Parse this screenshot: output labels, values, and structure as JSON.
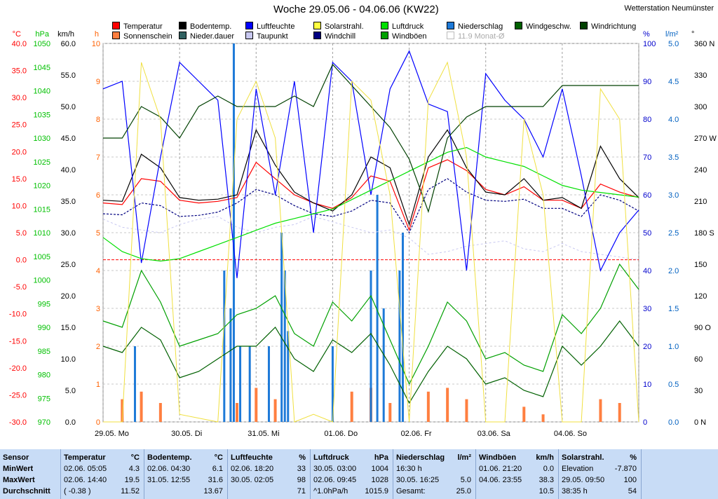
{
  "title": "Woche 29.05.06 - 04.06.06 (KW22)",
  "station": "Wetterstation Neumünster",
  "legend": [
    {
      "label": "Temperatur",
      "color": "#ff0000"
    },
    {
      "label": "Bodentemp.",
      "color": "#000000"
    },
    {
      "label": "Luftfeuchte",
      "color": "#0000ff"
    },
    {
      "label": "Solarstrahl.",
      "color": "#ffff40"
    },
    {
      "label": "Luftdruck",
      "color": "#00e000"
    },
    {
      "label": "Niederschlag",
      "color": "#1e7ad8"
    },
    {
      "label": "Windgeschw.",
      "color": "#006000"
    },
    {
      "label": "Windrichtung",
      "color": "#004000"
    },
    {
      "label": "Sonnenschein",
      "color": "#ff7f40"
    },
    {
      "label": "Nieder.dauer",
      "color": "#306060"
    },
    {
      "label": "Taupunkt",
      "color": "#c8c8f0"
    },
    {
      "label": "Windchill",
      "color": "#000080"
    },
    {
      "label": "Windböen",
      "color": "#00a000"
    },
    {
      "label": "11.9 Monat-Ø",
      "color": "#ffffff",
      "muted": true
    }
  ],
  "axes": {
    "temp": {
      "unit": "°C",
      "ticks": [
        "40.0",
        "35.0",
        "30.0",
        "25.0",
        "20.0",
        "15.0",
        "10.0",
        "5.0",
        "0.0",
        "-5.0",
        "-10.0",
        "-15.0",
        "-20.0",
        "-25.0",
        "-30.0"
      ],
      "color": "#ff0000"
    },
    "pressure": {
      "unit": "hPa",
      "ticks": [
        "1050",
        "1045",
        "1040",
        "1035",
        "1030",
        "1025",
        "1020",
        "1015",
        "1010",
        "1005",
        "1000",
        "995",
        "990",
        "985",
        "980",
        "975",
        "970"
      ],
      "color": "#00c000"
    },
    "wind": {
      "unit": "km/h",
      "ticks": [
        "60.0",
        "55.0",
        "50.0",
        "45.0",
        "40.0",
        "35.0",
        "30.0",
        "25.0",
        "20.0",
        "15.0",
        "10.0",
        "5.0",
        "0.0"
      ],
      "color": "#000000"
    },
    "hours": {
      "unit": "h",
      "ticks": [
        "10",
        "9",
        "8",
        "7",
        "6",
        "5",
        "4",
        "3",
        "2",
        "1",
        "0"
      ],
      "color": "#ff6000"
    },
    "humidity": {
      "unit": "%",
      "ticks": [
        "100",
        "90",
        "80",
        "70",
        "60",
        "50",
        "40",
        "30",
        "20",
        "10",
        "0"
      ],
      "color": "#0000cc"
    },
    "rain": {
      "unit": "l/m²",
      "ticks": [
        "5.0",
        "4.5",
        "4.0",
        "3.5",
        "3.0",
        "2.5",
        "2.0",
        "1.5",
        "1.0",
        "0.5",
        "0.0"
      ],
      "color": "#0060c0"
    },
    "direction": {
      "unit": "°",
      "ticks": [
        "360 N",
        "330",
        "300",
        "270 W",
        "240",
        "210",
        "180 S",
        "150",
        "120",
        "90 O",
        "60",
        "30",
        "0 N"
      ],
      "color": "#000000"
    }
  },
  "day_labels": [
    "29.05.  Mo",
    "30.05.  Di",
    "31.05.  Mi",
    "01.06.  Do",
    "02.06.  Fr",
    "03.06.  Sa",
    "04.06.  So"
  ],
  "chart_data": {
    "type": "line",
    "title": "Woche 29.05.06 - 04.06.06 (KW22)",
    "x": [
      0,
      6,
      12,
      18,
      24,
      30,
      36,
      42,
      48,
      54,
      60,
      66,
      72,
      78,
      84,
      90,
      96,
      102,
      108,
      114,
      120,
      126,
      132,
      138,
      144,
      150,
      156,
      162,
      168
    ],
    "x_unit": "hours since 29.05. 00:00",
    "series": [
      {
        "name": "Temperatur",
        "unit": "°C",
        "values": [
          10.5,
          10.2,
          15,
          14.5,
          11,
          10.5,
          10.8,
          11.5,
          18,
          15,
          12,
          10.5,
          9.5,
          11.5,
          15.5,
          14.5,
          5.5,
          17,
          18.5,
          16.5,
          13,
          12,
          13.5,
          11,
          11,
          9.5,
          14,
          12.5,
          11.5
        ]
      },
      {
        "name": "Bodentemp.",
        "unit": "°C",
        "values": [
          11,
          10.8,
          19.5,
          17,
          11.5,
          11,
          11.2,
          12,
          24,
          17.5,
          12.5,
          10.5,
          9,
          12,
          19,
          17,
          6.5,
          19,
          24,
          17,
          12.5,
          12,
          15,
          11,
          11.5,
          9.5,
          21,
          15,
          11.5
        ]
      },
      {
        "name": "Windchill",
        "unit": "°C",
        "values": [
          8.5,
          8.3,
          10.5,
          10,
          8,
          8.2,
          8.8,
          10.5,
          13,
          12,
          10,
          8.5,
          8,
          9,
          11,
          10.5,
          5,
          13,
          15,
          12.5,
          11,
          10.8,
          11.2,
          9.5,
          9.5,
          8,
          12,
          11,
          9
        ]
      },
      {
        "name": "Taupunkt",
        "unit": "°C",
        "values": [
          7.5,
          6,
          5.5,
          5,
          6.5,
          7.5,
          8,
          6,
          5,
          6,
          6.5,
          8,
          7,
          6,
          5,
          5.5,
          4,
          1,
          1.5,
          2.5,
          3,
          3.5,
          2,
          1.5,
          3,
          1.5,
          1,
          0.5,
          0
        ]
      },
      {
        "name": "Luftfeuchte",
        "unit": "%",
        "values": [
          88,
          90,
          42,
          70,
          95,
          90,
          85,
          38,
          88,
          60,
          90,
          50,
          95,
          90,
          60,
          88,
          98,
          84,
          82,
          40,
          92,
          85,
          80,
          70,
          88,
          65,
          40,
          50,
          56
        ]
      },
      {
        "name": "Luftdruck",
        "unit": "hPa",
        "values": [
          1009,
          1006,
          1004.5,
          1004,
          1004.5,
          1006,
          1007.5,
          1009,
          1010.5,
          1012,
          1013,
          1014,
          1015,
          1017,
          1019,
          1021,
          1023,
          1025,
          1027,
          1028,
          1026,
          1025,
          1024,
          1022,
          1020,
          1019,
          1018.5,
          1018,
          1017.5
        ]
      },
      {
        "name": "Windgeschw.",
        "unit": "km/h",
        "values": [
          12,
          11,
          15,
          13,
          7,
          8,
          10,
          12,
          12,
          15,
          10,
          8,
          13,
          11,
          14,
          9,
          3,
          8,
          12,
          10,
          6,
          7,
          5,
          4,
          12,
          9,
          12,
          16,
          12
        ]
      },
      {
        "name": "Windböen",
        "unit": "km/h",
        "values": [
          16,
          15,
          24,
          19,
          12,
          13,
          14,
          17,
          18,
          20,
          14,
          12,
          19,
          16,
          20,
          13,
          6,
          12,
          19,
          16,
          10,
          11,
          9,
          8,
          17,
          14,
          18,
          25,
          21
        ]
      },
      {
        "name": "Windrichtung",
        "unit": "°",
        "values": [
          270,
          270,
          300,
          290,
          270,
          300,
          310,
          300,
          300,
          300,
          310,
          300,
          340,
          320,
          300,
          280,
          250,
          200,
          270,
          290,
          300,
          300,
          300,
          300,
          320,
          320,
          320,
          320,
          320
        ]
      },
      {
        "name": "Solarstrahl.",
        "unit": "%",
        "values": [
          0,
          0,
          95,
          80,
          2,
          1,
          0,
          80,
          90,
          75,
          0,
          2,
          0,
          90,
          85,
          60,
          0,
          85,
          95,
          70,
          0,
          0,
          80,
          60,
          0,
          0,
          88,
          80,
          0
        ]
      }
    ],
    "bars": [
      {
        "name": "Sonnenschein",
        "unit": "h",
        "values": [
          0,
          0.6,
          0.8,
          0.5,
          0,
          0,
          0,
          0.5,
          0.9,
          0.6,
          0,
          0,
          0,
          0.8,
          0.9,
          0.5,
          0,
          0.8,
          0.9,
          0.6,
          0,
          0,
          0.4,
          0.2,
          0,
          0,
          0.6,
          0.5,
          0
        ]
      },
      {
        "name": "Niederschlag",
        "unit": "l/m²",
        "values": [
          0,
          0,
          0,
          0,
          0,
          0,
          0,
          0,
          0,
          0,
          0,
          0,
          0,
          0,
          0,
          0,
          0,
          0,
          0,
          0,
          0,
          0,
          0,
          0,
          0,
          0,
          0,
          0,
          0
        ]
      },
      {
        "name": "Nieder.dauer",
        "unit": "h",
        "values": [
          0,
          0,
          0,
          0,
          0,
          0,
          0,
          0,
          0,
          0,
          0,
          0,
          0,
          0,
          0,
          0,
          0,
          0,
          0,
          0,
          0,
          0,
          0,
          0,
          0,
          0,
          0,
          0,
          0
        ]
      }
    ],
    "rain_events": [
      {
        "x": 10,
        "v": 1.0
      },
      {
        "x": 38,
        "v": 2.0
      },
      {
        "x": 40,
        "v": 1.5
      },
      {
        "x": 41,
        "v": 5.0
      },
      {
        "x": 43,
        "v": 1.0
      },
      {
        "x": 46,
        "v": 1.0
      },
      {
        "x": 52,
        "v": 1.0
      },
      {
        "x": 56,
        "v": 2.5
      },
      {
        "x": 57,
        "v": 2.0
      },
      {
        "x": 58,
        "v": 1.2
      },
      {
        "x": 72,
        "v": 1.0
      },
      {
        "x": 84,
        "v": 2.0
      },
      {
        "x": 86,
        "v": 3.0
      },
      {
        "x": 88,
        "v": 1.5
      },
      {
        "x": 93,
        "v": 2.0
      },
      {
        "x": 94,
        "v": 2.5
      }
    ],
    "ylim": {
      "temp": [
        -30,
        40
      ],
      "pressure": [
        970,
        1050
      ],
      "wind": [
        0,
        60
      ],
      "hours": [
        0,
        10
      ],
      "humidity": [
        0,
        100
      ],
      "rain": [
        0,
        5
      ],
      "direction": [
        0,
        360
      ]
    },
    "xlim": [
      0,
      168
    ],
    "grid": true
  },
  "stats": {
    "columns": [
      {
        "header": "Temperatur",
        "unit": "°C",
        "rows": [
          [
            "02.06.  05:05",
            "4.3"
          ],
          [
            "02.06.  14:40",
            "19.5"
          ],
          [
            "( -0.38 )",
            "11.52"
          ]
        ]
      },
      {
        "header": "Bodentemp.",
        "unit": "°C",
        "rows": [
          [
            "02.06.  04:30",
            "6.1"
          ],
          [
            "31.05.  12:55",
            "31.6"
          ],
          [
            "",
            "13.67"
          ]
        ]
      },
      {
        "header": "Luftfeuchte",
        "unit": "%",
        "rows": [
          [
            "02.06.  18:20",
            "33"
          ],
          [
            "30.05.  02:05",
            "98"
          ],
          [
            "",
            "71"
          ]
        ]
      },
      {
        "header": "Luftdruck",
        "unit": "hPa",
        "rows": [
          [
            "30.05.  03:00",
            "1004"
          ],
          [
            "02.06.  09:45",
            "1028"
          ],
          [
            "^1.0hPa/h",
            "1015.9"
          ]
        ]
      },
      {
        "header": "Niederschlag",
        "unit": "l/m²",
        "rows": [
          [
            "16:30 h",
            ""
          ],
          [
            "30.05.  16:25",
            "5.0"
          ],
          [
            "Gesamt:",
            "25.0"
          ]
        ]
      },
      {
        "header": "Windböen",
        "unit": "km/h",
        "rows": [
          [
            "01.06.  21:20",
            "0.0"
          ],
          [
            "04.06.  23:55",
            "38.3"
          ],
          [
            "",
            "10.5"
          ]
        ]
      },
      {
        "header": "Solarstrahl.",
        "unit": "%",
        "rows": [
          [
            "Elevation",
            "-7.870"
          ],
          [
            "29.05.  09:50",
            "100"
          ],
          [
            "38:35 h",
            "54"
          ]
        ]
      }
    ],
    "row_labels": [
      "Sensor",
      "MinWert",
      "MaxWert",
      "Durchschnitt"
    ]
  }
}
